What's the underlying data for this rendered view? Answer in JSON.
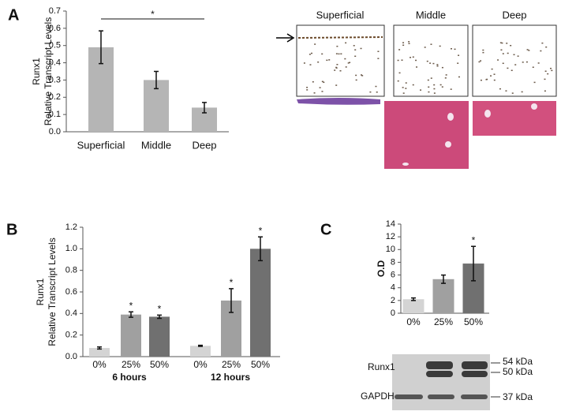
{
  "panels": [
    "A",
    "B",
    "C"
  ],
  "histology": {
    "zones": [
      "Superficial",
      "Middle",
      "Deep"
    ]
  },
  "blot": {
    "rows": [
      "Runx1",
      "GAPDH"
    ],
    "markers": [
      "54 kDa",
      "50 kDa",
      "37 kDa"
    ]
  },
  "chart_data": [
    {
      "type": "bar",
      "ylabel": [
        "Runx1",
        "Relative Transcript Levels"
      ],
      "categories": [
        "Superficial",
        "Middle",
        "Deep"
      ],
      "values": [
        0.49,
        0.3,
        0.14
      ],
      "errors": [
        0.095,
        0.05,
        0.03
      ],
      "color": "#b5b5b5",
      "significance": "*",
      "ylim": [
        0,
        0.7
      ],
      "yticks": [
        {
          "value": 0,
          "label": "0.0"
        },
        0.1,
        0.2,
        0.3,
        0.4,
        0.5,
        0.6,
        0.7
      ]
    },
    {
      "type": "bar",
      "ylabel": [
        "Runx1",
        "Relative Transcript Levels"
      ],
      "categories": [
        "0%",
        "25%",
        "50%",
        "0%",
        "25%",
        "50%"
      ],
      "groups": [
        "6 hours",
        "12 hours"
      ],
      "values": [
        0.08,
        0.39,
        0.37,
        0.1,
        0.52,
        1.0
      ],
      "errors": [
        0.01,
        0.025,
        0.015,
        0.005,
        0.11,
        0.11
      ],
      "colors": [
        "#d4d4d4",
        "#a0a0a0",
        "#707070",
        "#d4d4d4",
        "#a0a0a0",
        "#707070"
      ],
      "markers": [
        null,
        "*",
        "*",
        null,
        "*",
        "*"
      ],
      "ylim": [
        0,
        1.2
      ],
      "yticks": [
        {
          "value": 0,
          "label": "0.0"
        },
        0.2,
        0.4,
        0.6,
        0.8,
        {
          "value": 1,
          "label": "1.0"
        },
        1.2
      ]
    },
    {
      "type": "bar",
      "ylabel": "O.D",
      "categories": [
        "0%",
        "25%",
        "50%"
      ],
      "values": [
        2.2,
        5.35,
        7.8
      ],
      "errors": [
        0.2,
        0.65,
        2.7
      ],
      "colors": [
        "#d4d4d4",
        "#a0a0a0",
        "#707070"
      ],
      "markers": [
        null,
        null,
        "*"
      ],
      "ylim": [
        0,
        14
      ],
      "yticks": [
        0,
        2,
        4,
        6,
        8,
        10,
        12,
        14
      ]
    }
  ]
}
